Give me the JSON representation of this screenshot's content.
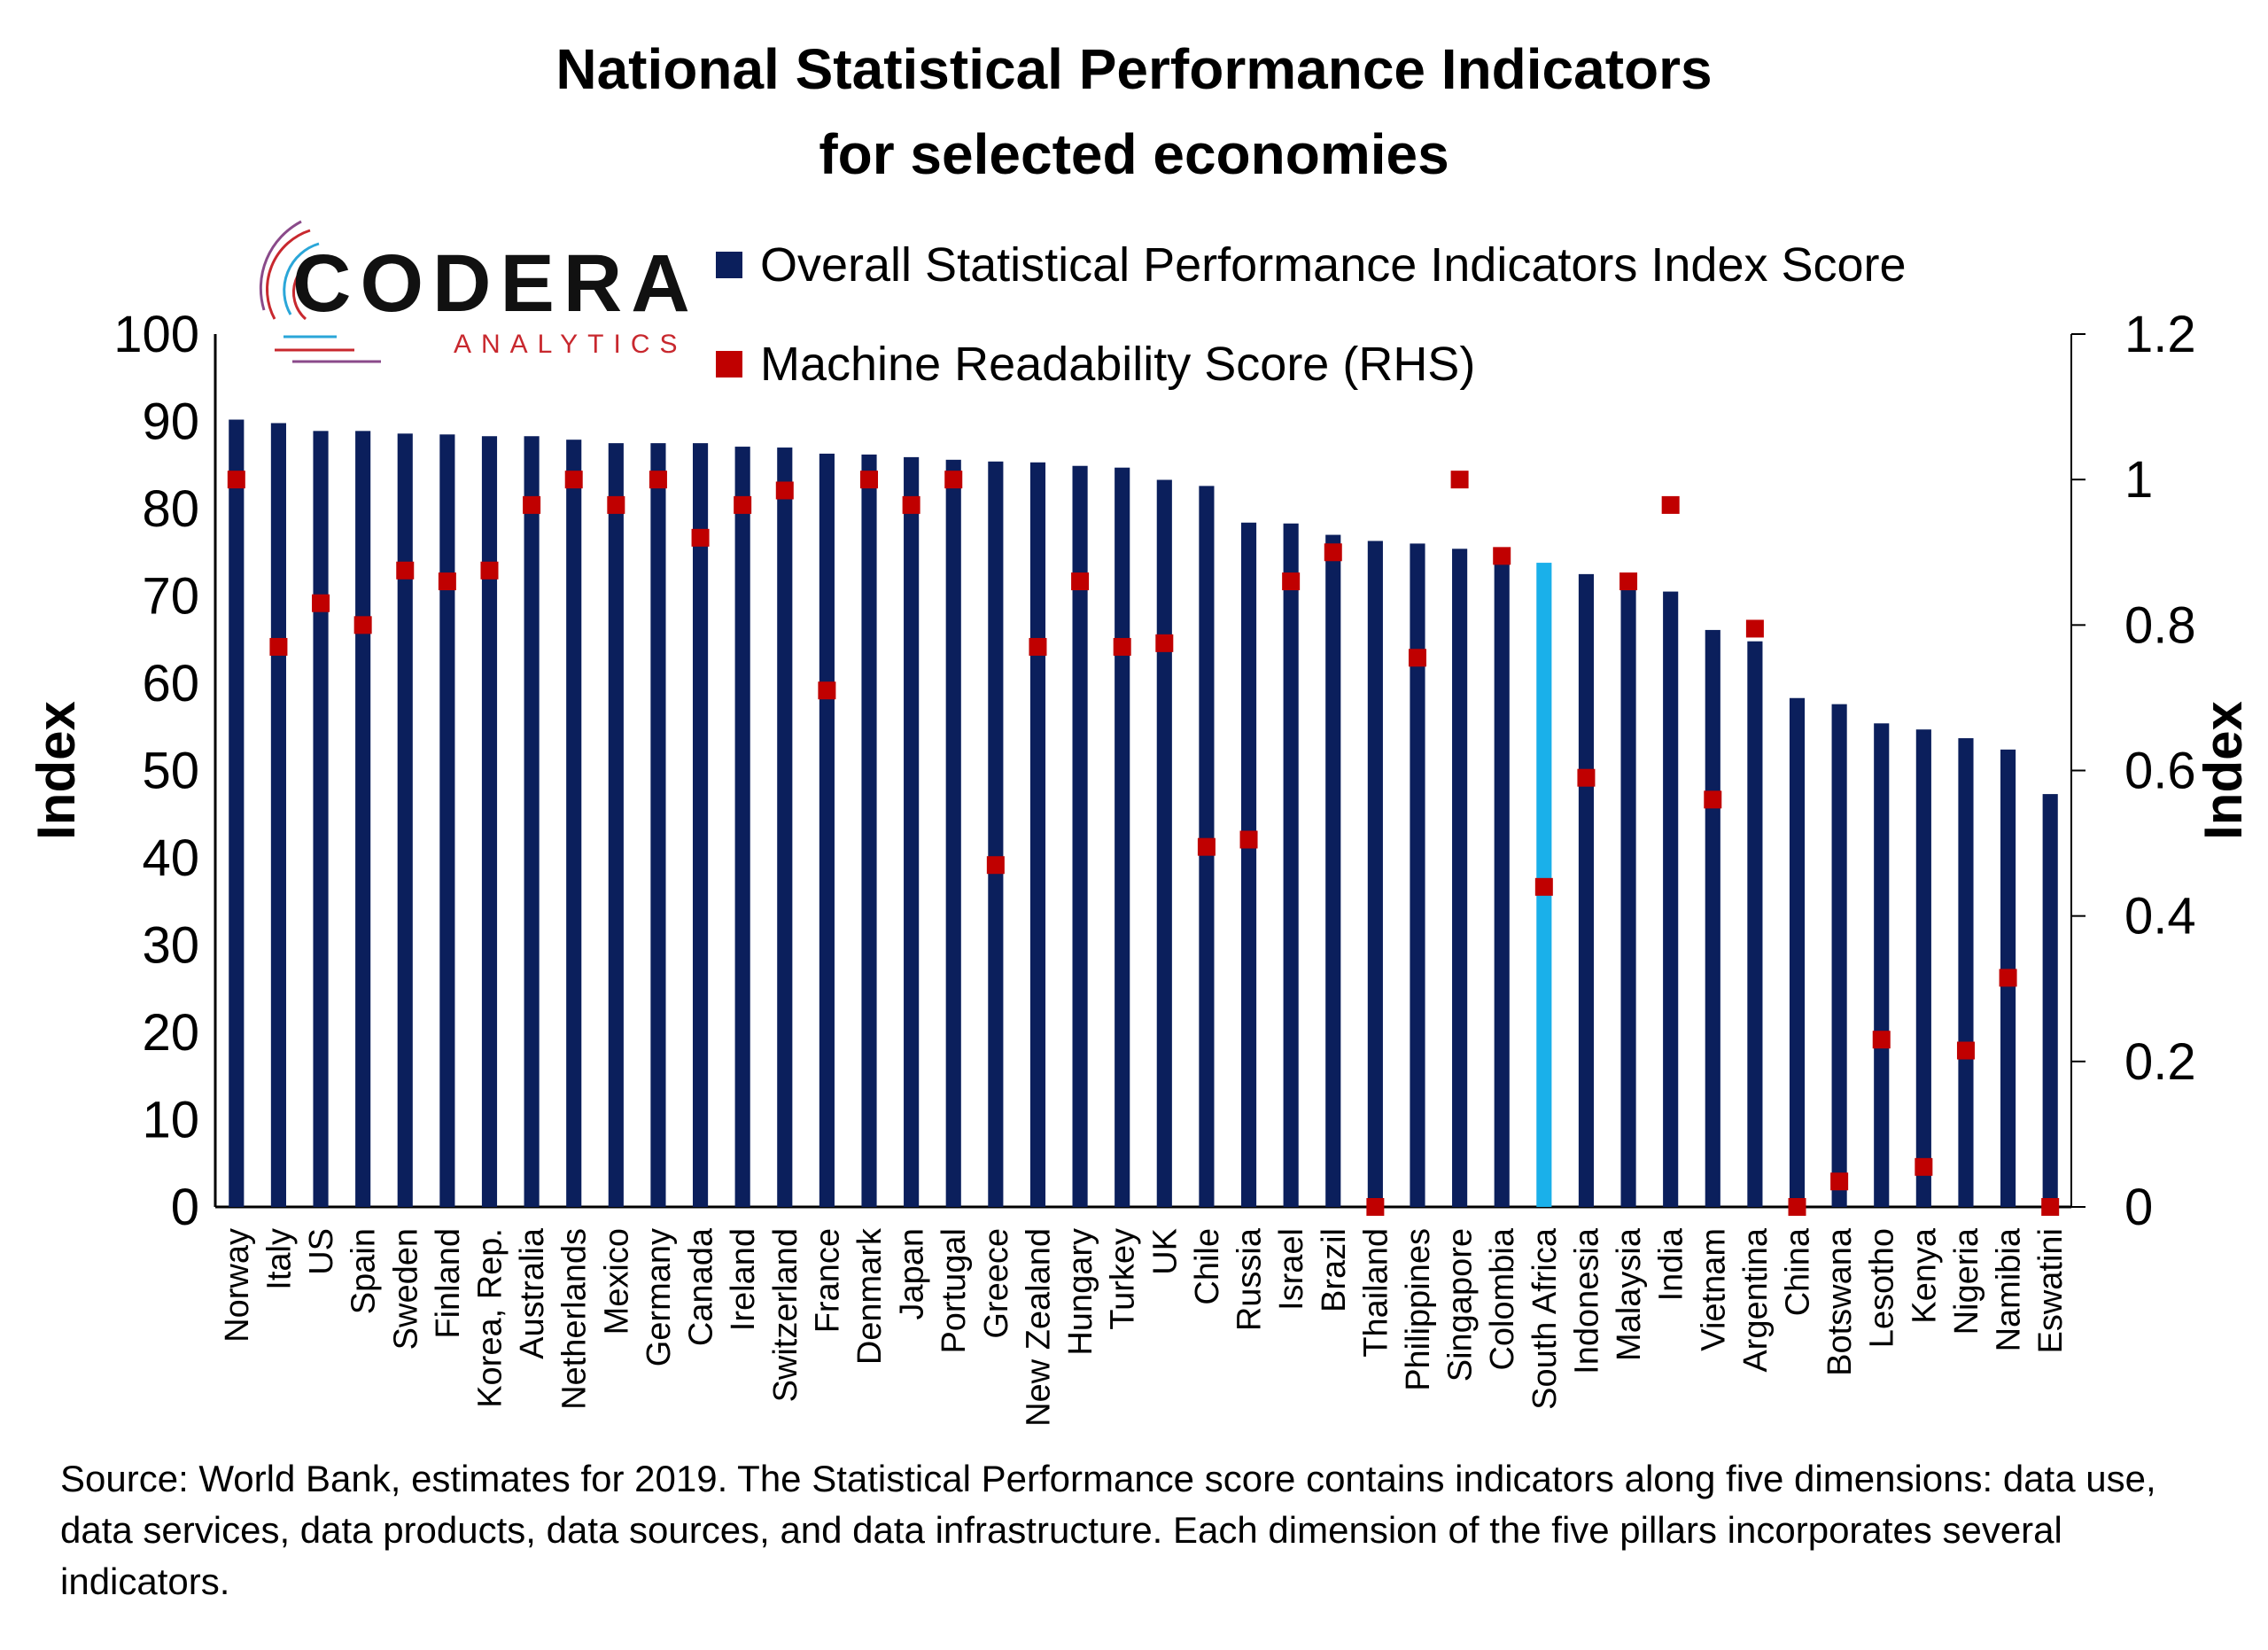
{
  "title_line1": "National Statistical Performance Indicators",
  "title_line2": "for selected economies",
  "logo": {
    "word": "CODERA",
    "sub": "ANALYTICS"
  },
  "legend": {
    "bar_label": "Overall Statistical Performance Indicators Index Score",
    "marker_label": "Machine Readability Score (RHS)"
  },
  "footnote": "Source: World Bank, estimates for 2019. The Statistical Performance score contains indicators along five dimensions: data use, data services, data products, data sources, and data infrastructure. Each dimension of the five pillars incorporates several indicators.",
  "colors": {
    "bar": "#0b1f5c",
    "highlight_bar": "#1ab0ea",
    "marker": "#c00000"
  },
  "chart_data": {
    "type": "bar",
    "highlight": "South Africa",
    "ylabel": "Index",
    "ylabel_right": "Index",
    "ylim": [
      0,
      100
    ],
    "ylim_right": [
      0,
      1.2
    ],
    "yticks": [
      0,
      10,
      20,
      30,
      40,
      50,
      60,
      70,
      80,
      90,
      100
    ],
    "yticks_right": [
      "0",
      "0.2",
      "0.4",
      "0.6",
      "0.8",
      "1",
      "1.2"
    ],
    "categories": [
      "Norway",
      "Italy",
      "US",
      "Spain",
      "Sweden",
      "Finland",
      "Korea, Rep.",
      "Australia",
      "Netherlands",
      "Mexico",
      "Germany",
      "Canada",
      "Ireland",
      "Switzerland",
      "France",
      "Denmark",
      "Japan",
      "Portugal",
      "Greece",
      "New Zealand",
      "Hungary",
      "Turkey",
      "UK",
      "Chile",
      "Russia",
      "Israel",
      "Brazil",
      "Thailand",
      "Philippines",
      "Singapore",
      "Colombia",
      "South Africa",
      "Indonesia",
      "Malaysia",
      "India",
      "Vietnam",
      "Argentina",
      "China",
      "Botswana",
      "Lesotho",
      "Kenya",
      "Nigeria",
      "Namibia",
      "Eswatini"
    ],
    "series": [
      {
        "name": "Overall Statistical Performance Indicators Index Score",
        "axis": "left",
        "values": [
          90.2,
          89.8,
          88.9,
          88.9,
          88.6,
          88.5,
          88.3,
          88.3,
          87.9,
          87.5,
          87.5,
          87.5,
          87.1,
          87.0,
          86.3,
          86.2,
          85.9,
          85.6,
          85.4,
          85.3,
          84.9,
          84.7,
          83.3,
          82.6,
          78.4,
          78.3,
          77.0,
          76.3,
          76.0,
          75.4,
          74.1,
          73.8,
          72.5,
          71.9,
          70.5,
          66.1,
          64.8,
          58.3,
          57.6,
          55.4,
          54.7,
          53.7,
          52.4,
          47.3
        ]
      },
      {
        "name": "Machine Readability Score (RHS)",
        "axis": "right",
        "values": [
          1.0,
          0.77,
          0.83,
          0.8,
          0.875,
          0.86,
          0.875,
          0.965,
          1.0,
          0.965,
          1.0,
          0.92,
          0.965,
          0.985,
          0.71,
          1.0,
          0.965,
          1.0,
          0.47,
          0.77,
          0.86,
          0.77,
          0.775,
          0.495,
          0.505,
          0.86,
          0.9,
          0.0,
          0.755,
          1.0,
          0.895,
          0.44,
          0.59,
          0.86,
          0.965,
          0.56,
          0.795,
          0.0,
          0.035,
          0.23,
          0.055,
          0.215,
          0.315,
          0.0
        ]
      }
    ]
  }
}
